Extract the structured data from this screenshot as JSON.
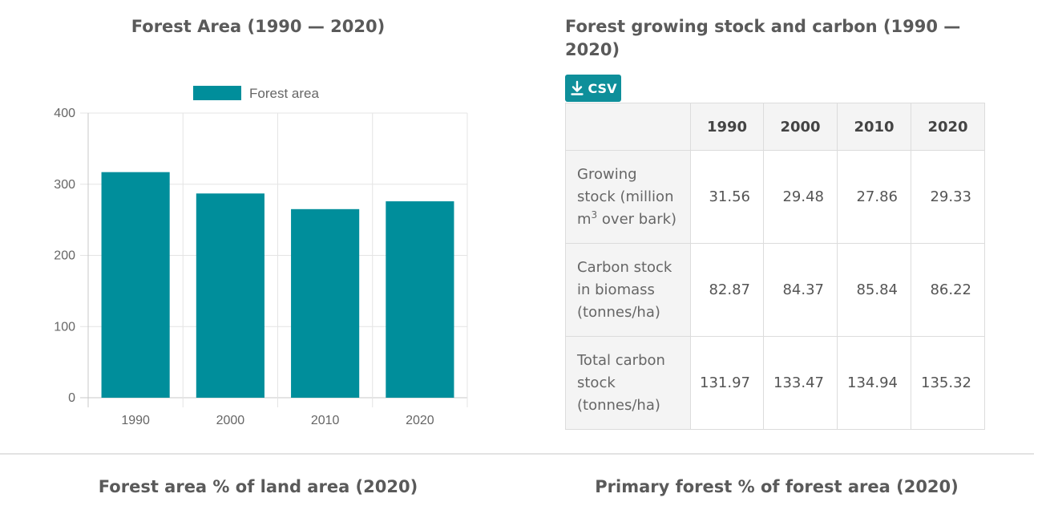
{
  "chart_data": {
    "type": "bar",
    "title": "Forest Area (1990 — 2020)",
    "categories": [
      "1990",
      "2000",
      "2010",
      "2020"
    ],
    "series": [
      {
        "name": "Forest area",
        "values": [
          317,
          287,
          265,
          276
        ]
      }
    ],
    "ylim": [
      0,
      400
    ],
    "yticks": [
      0,
      100,
      200,
      300,
      400
    ],
    "grid": true,
    "legend": "top-center",
    "bar_color": "#008e9b"
  },
  "table": {
    "title": "Forest growing stock and carbon (1990 — 2020)",
    "csv_label": "CSV",
    "columns": [
      "",
      "1990",
      "2000",
      "2010",
      "2020"
    ],
    "rows": [
      {
        "label_pre": "Growing stock (million m",
        "label_sup": "3",
        "label_post": " over bark)",
        "values": [
          "31.56",
          "29.48",
          "27.86",
          "29.33"
        ]
      },
      {
        "label_pre": "Carbon stock in biomass (tonnes/ha)",
        "label_sup": "",
        "label_post": "",
        "values": [
          "82.87",
          "84.37",
          "85.84",
          "86.22"
        ]
      },
      {
        "label_pre": "Total carbon stock (tonnes/ha)",
        "label_sup": "",
        "label_post": "",
        "values": [
          "131.97",
          "133.47",
          "134.94",
          "135.32"
        ]
      }
    ]
  },
  "bottom": {
    "left_title": "Forest area % of land area (2020)",
    "right_title": "Primary forest % of forest area (2020)"
  },
  "colors": {
    "accent": "#0e8f9a"
  }
}
